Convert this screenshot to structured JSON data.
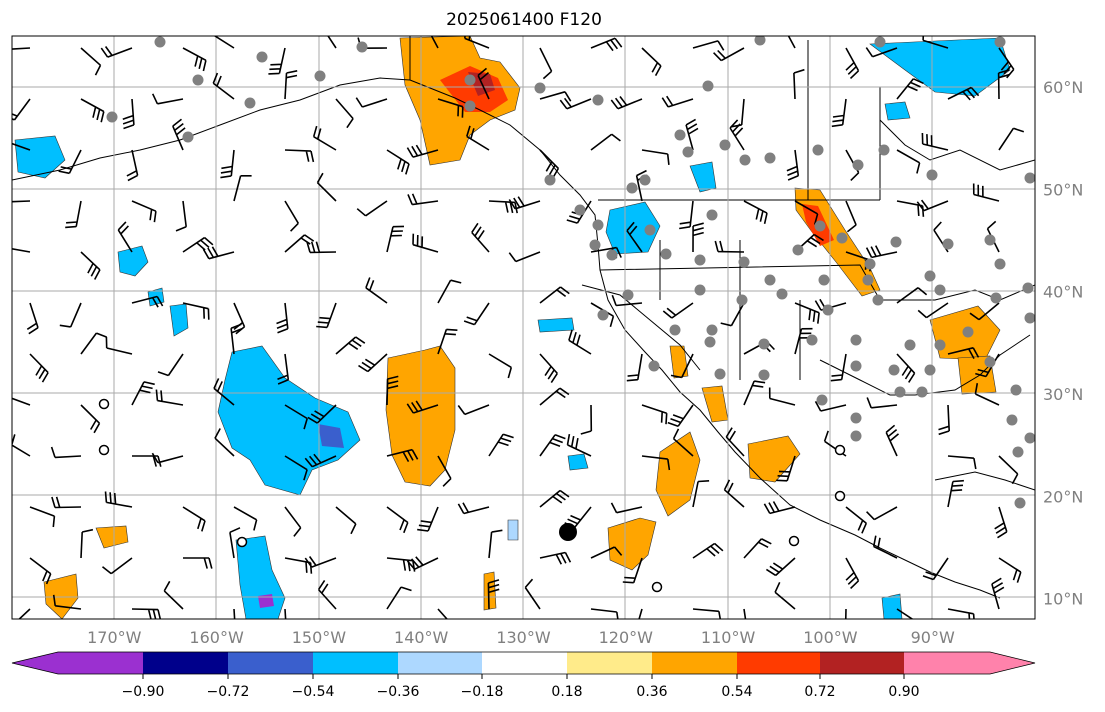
{
  "title": "2025061400 F120",
  "map": {
    "type": "forecast-map",
    "projection": "plate-carree",
    "lon_range": [
      -180,
      -80
    ],
    "lat_range": [
      8,
      65
    ],
    "grid": true,
    "lon_ticks": [
      {
        "value": -170,
        "label": "170°W"
      },
      {
        "value": -160,
        "label": "160°W"
      },
      {
        "value": -150,
        "label": "150°W"
      },
      {
        "value": -140,
        "label": "140°W"
      },
      {
        "value": -130,
        "label": "130°W"
      },
      {
        "value": -120,
        "label": "120°W"
      },
      {
        "value": -110,
        "label": "110°W"
      },
      {
        "value": -100,
        "label": "100°W"
      },
      {
        "value": -90,
        "label": "90°W"
      }
    ],
    "lat_ticks": [
      {
        "value": 60,
        "label": "60°N"
      },
      {
        "value": 50,
        "label": "50°N"
      },
      {
        "value": 40,
        "label": "40°N"
      },
      {
        "value": 30,
        "label": "30°N"
      },
      {
        "value": 20,
        "label": "20°N"
      },
      {
        "value": 10,
        "label": "10°N"
      }
    ],
    "elements": "filled contour field with wind barbs, station markers and coastline/border outlines"
  },
  "colorbar": {
    "extend": "both",
    "ticks": [
      "−0.90",
      "−0.72",
      "−0.54",
      "−0.36",
      "−0.18",
      "0.18",
      "0.36",
      "0.54",
      "0.72",
      "0.90"
    ],
    "colors": [
      "#9b30d0",
      "#00008b",
      "#3a5fcd",
      "#00bfff",
      "#add8ff",
      "#ffffff",
      "#ffeb8a",
      "#ffa500",
      "#ff3b00",
      "#b22222",
      "#ff82ab"
    ]
  }
}
